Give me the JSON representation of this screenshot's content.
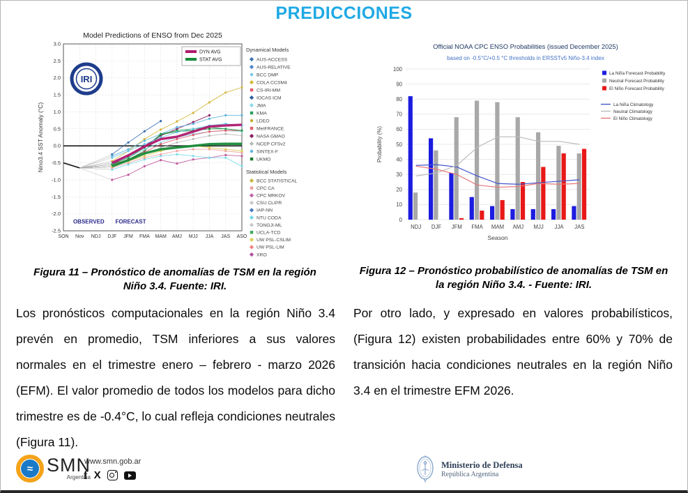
{
  "page": {
    "title": "PREDICCIONES"
  },
  "fig11": {
    "caption": "Figura 11 – Pronóstico de anomalías de TSM en la región Niño 3.4. Fuente: IRI."
  },
  "fig12": {
    "caption": "Figura 12 – Pronóstico probabilístico de anomalías de TSM en la región Niño 3.4. - Fuente: IRI."
  },
  "body_left": "Los pronósticos computacionales en la región Niño 3.4 prevén en promedio, TSM inferiores a sus valores normales en el trimestre enero – febrero - marzo 2026 (EFM). El valor promedio de todos los modelos para dicho trimestre es de -0.4°C, lo cual refleja condiciones neutrales (Figura 11).",
  "body_right": "Por otro lado, y expresado en valores probabilísticos, (Figura 12) existen probabilidades entre 60% y 70% de transición hacia condiciones neutrales en la región Niño 3.4 en el trimestre EFM 2026.",
  "footer": {
    "smn_name": "SMN",
    "smn_country": "Argentina",
    "smn_url": "www.smn.gob.ar",
    "ministry_line1": "Ministerio de Defensa",
    "ministry_line2": "República Argentina"
  },
  "chart_data": [
    {
      "type": "line",
      "title": "Model Predictions of ENSO from Dec 2025",
      "ylabel": "Nino3.4 SST Anomaly (°C)",
      "x": [
        "SON",
        "Nov",
        "NDJ",
        "DJF",
        "JFM",
        "FMA",
        "MAM",
        "AMJ",
        "MJJ",
        "JJA",
        "JAS",
        "ASO"
      ],
      "ylim": [
        -2.5,
        3.0
      ],
      "yticks": [
        3.0,
        2.5,
        2.0,
        1.5,
        1.0,
        0.5,
        0.0,
        -0.5,
        -1.0,
        -1.5,
        -2.0,
        -2.5
      ],
      "zone_labels": {
        "observed": "OBSERVED",
        "forecast": "FORECAST"
      },
      "logo": "IRI",
      "observed": {
        "color": "#1a1a1a",
        "x": [
          "SON",
          "Nov"
        ],
        "values": [
          -0.5,
          -0.65
        ]
      },
      "avg_series": [
        {
          "name": "DYN AVG",
          "color": "#b0186e",
          "values": [
            -0.5,
            -0.28,
            -0.02,
            0.2,
            0.27,
            0.42,
            0.57,
            0.6,
            0.62
          ]
        },
        {
          "name": "STAT AVG",
          "color": "#168a38",
          "values": [
            -0.6,
            -0.42,
            -0.22,
            -0.1,
            -0.05,
            0.0,
            0.05,
            0.06,
            0.06
          ]
        }
      ],
      "model_series": [
        {
          "name": "AUS-ACCESS",
          "color": "#3a6fb0",
          "values": [
            -0.25,
            0.1,
            0.43,
            0.73,
            null,
            null,
            null,
            null,
            null
          ]
        },
        {
          "name": "COLA CCSM4",
          "color": "#d4b83c",
          "values": [
            -0.45,
            -0.15,
            0.2,
            0.48,
            0.72,
            0.97,
            1.28,
            1.57,
            1.72
          ]
        },
        {
          "name": "NASA GMAO",
          "color": "#8b1a5e",
          "values": [
            -0.55,
            -0.3,
            0.0,
            0.3,
            0.5,
            0.7,
            0.9,
            null,
            null
          ]
        },
        {
          "name": "SINTEX-F",
          "color": "#5ab4e0",
          "values": [
            -0.3,
            -0.1,
            0.15,
            0.35,
            0.55,
            0.65,
            0.8,
            0.9,
            0.9
          ]
        },
        {
          "name": "UKMO",
          "color": "#1a7a2e",
          "values": [
            -0.6,
            -0.4,
            -0.15,
            0.33,
            0.42,
            0.45,
            0.5,
            0.5,
            0.45
          ]
        },
        {
          "name": "JMA",
          "color": "#8fd8e8",
          "values": [
            -0.5,
            -0.35,
            -0.1,
            0.1,
            0.25,
            0.35,
            0.42,
            0.45,
            0.42
          ]
        },
        {
          "name": "MetFRANCE",
          "color": "#e05a6a",
          "values": [
            -0.55,
            -0.4,
            -0.18,
            0.05,
            0.2,
            0.32,
            0.42,
            0.45,
            0.45
          ]
        },
        {
          "name": "KMA",
          "color": "#2aa05a",
          "values": [
            -0.55,
            -0.35,
            -0.05,
            0.35,
            0.45,
            0.5,
            0.55,
            0.5,
            0.45
          ]
        },
        {
          "name": "NCEP CFSv2",
          "color": "#b8b8b8",
          "values": [
            -0.6,
            -0.45,
            -0.25,
            -0.05,
            0.1,
            0.2,
            0.3,
            0.35,
            0.3
          ]
        },
        {
          "name": "BCC DMP",
          "color": "#6ec6ea",
          "values": [
            -0.35,
            -0.15,
            0.05,
            0.25,
            0.4,
            0.5,
            0.6,
            0.65,
            0.6
          ]
        },
        {
          "name": "CPC MRKOV",
          "color": "#c05a9e",
          "values": [
            -1.0,
            -0.85,
            -0.6,
            -0.42,
            -0.52,
            -0.4,
            -0.35,
            -0.27,
            -0.3
          ]
        },
        {
          "name": "NTU CODA",
          "color": "#7adcec",
          "values": [
            -0.7,
            -0.55,
            -0.4,
            -0.3,
            -0.25,
            -0.3,
            -0.35,
            -0.35,
            -0.6
          ]
        },
        {
          "name": "CPC CA",
          "color": "#f0a0a0",
          "values": [
            -0.65,
            -0.5,
            -0.35,
            -0.25,
            -0.15,
            -0.1,
            -0.1,
            -0.15,
            -0.2
          ]
        },
        {
          "name": "UW PSL-CSLIM",
          "color": "#d8cc50",
          "values": [
            -0.6,
            -0.45,
            -0.3,
            -0.15,
            -0.05,
            0.0,
            -0.05,
            -0.1,
            -0.15
          ]
        }
      ],
      "legend_dynamical": {
        "header": "Dynamical Models",
        "items": [
          {
            "name": "AUS-ACCESS",
            "color": "#3a6fb0",
            "marker": "d"
          },
          {
            "name": "AUS-RELATIVE",
            "color": "#4a86c8",
            "marker": "d"
          },
          {
            "name": "BCC DMP",
            "color": "#6ec6ea",
            "marker": "c"
          },
          {
            "name": "COLA CCSM4",
            "color": "#d4b83c",
            "marker": "d"
          },
          {
            "name": "CS-IRI-MM",
            "color": "#e05a6a",
            "marker": "s"
          },
          {
            "name": "IOCAS ICM",
            "color": "#2a5aa0",
            "marker": "d"
          },
          {
            "name": "JMA",
            "color": "#8fd8e8",
            "marker": "d"
          },
          {
            "name": "KMA",
            "color": "#2aa05a",
            "marker": "s"
          },
          {
            "name": "LDEO",
            "color": "#c8a828",
            "marker": "c"
          },
          {
            "name": "MetFRANCE",
            "color": "#e06070",
            "marker": "s"
          },
          {
            "name": "NASA GMAO",
            "color": "#8b1a5e",
            "marker": "d"
          },
          {
            "name": "NCEP CFSv2",
            "color": "#b8b8b8",
            "marker": "d"
          },
          {
            "name": "SINTEX-F",
            "color": "#5ab4e0",
            "marker": "c"
          },
          {
            "name": "UKMO",
            "color": "#1a7a2e",
            "marker": "s"
          }
        ]
      },
      "legend_statistical": {
        "header": "Statistical Models",
        "items": [
          {
            "name": "BCC STATISTICAL",
            "color": "#c8b440",
            "marker": "d"
          },
          {
            "name": "CPC CA",
            "color": "#f2a0a0",
            "marker": "s"
          },
          {
            "name": "CPC MRKOV",
            "color": "#c060a8",
            "marker": "d"
          },
          {
            "name": "CSU CLIPR",
            "color": "#c8c8c8",
            "marker": "d"
          },
          {
            "name": "IAP-NN",
            "color": "#4a78c0",
            "marker": "d"
          },
          {
            "name": "NTU CODA",
            "color": "#70d8e8",
            "marker": "d"
          },
          {
            "name": "TONGJI-ML",
            "color": "#c8c8c8",
            "marker": "d"
          },
          {
            "name": "UCLA-TCD",
            "color": "#40a860",
            "marker": "s"
          },
          {
            "name": "UW PSL-CSLIM",
            "color": "#d8d050",
            "marker": "d"
          },
          {
            "name": "UW PSL-LIM",
            "color": "#f08080",
            "marker": "d"
          },
          {
            "name": "XRO",
            "color": "#b050a0",
            "marker": "d"
          }
        ]
      }
    },
    {
      "type": "bar",
      "title": "Official NOAA CPC ENSO Probabilities (issued December 2025)",
      "subtitle": "based on -0.5°C/+0.5 °C thresholds in ERSSTv5 Niño-3.4 index",
      "xlabel": "Season",
      "ylabel": "Probability (%)",
      "ylim": [
        0,
        100
      ],
      "yticks": [
        0,
        10,
        20,
        30,
        40,
        50,
        60,
        70,
        80,
        90,
        100
      ],
      "categories": [
        "NDJ",
        "DJF",
        "JFM",
        "FMA",
        "MAM",
        "AMJ",
        "MJJ",
        "JJA",
        "JAS"
      ],
      "bar_series": [
        {
          "name": "La Niña Forecast Probability",
          "color": "#1c1ce0",
          "values": [
            82,
            54,
            31,
            15,
            9,
            7,
            7,
            7,
            9
          ]
        },
        {
          "name": "Neutral Forecast Probability",
          "color": "#a8a8a8",
          "values": [
            18,
            46,
            68,
            79,
            78,
            68,
            58,
            49,
            44
          ]
        },
        {
          "name": "El Niño Forecast Probability",
          "color": "#e81818",
          "values": [
            0,
            0,
            1,
            6,
            13,
            25,
            35,
            44,
            47
          ]
        }
      ],
      "line_series": [
        {
          "name": "La Niña Climatology",
          "color": "#4455cc",
          "values": [
            36,
            36.5,
            35,
            29,
            24,
            23.5,
            24.5,
            25.5,
            26.5
          ]
        },
        {
          "name": "Neutral Climatology",
          "color": "#bbbbbb",
          "values": [
            29,
            31,
            36,
            48,
            55,
            55,
            52,
            52,
            50
          ]
        },
        {
          "name": "El Niño Climatology",
          "color": "#e87878",
          "values": [
            35.5,
            33.5,
            30,
            23,
            21.5,
            22,
            24,
            23.5,
            24
          ]
        }
      ]
    }
  ]
}
